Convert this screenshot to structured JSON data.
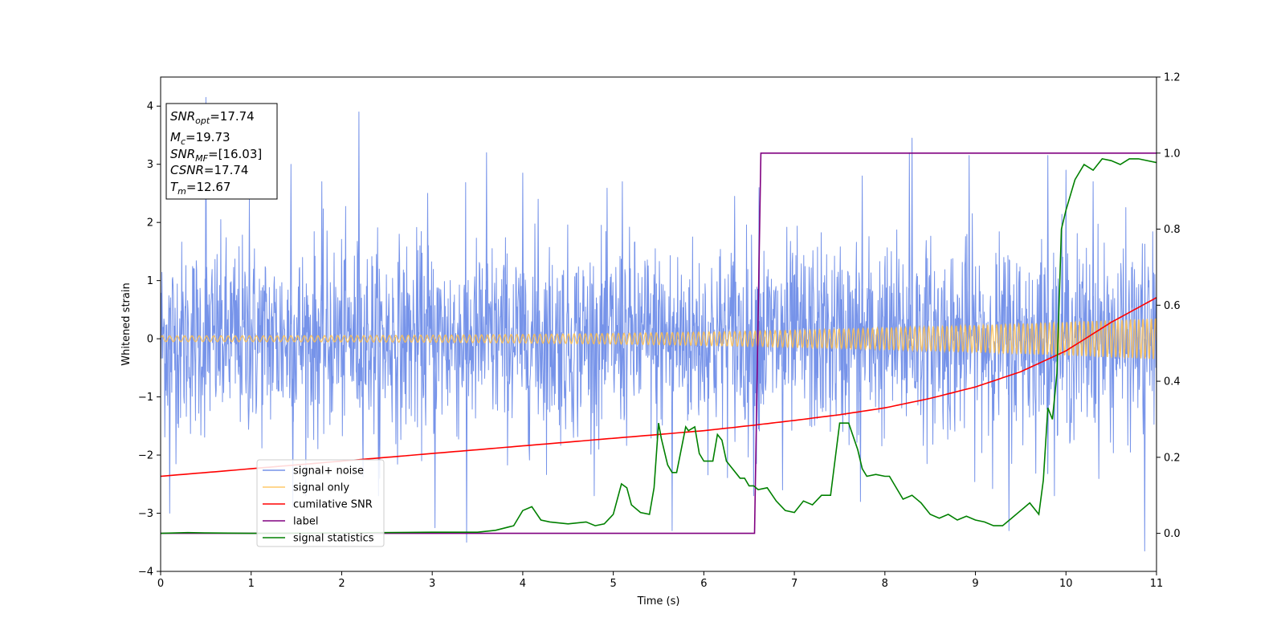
{
  "chart_data": {
    "type": "line",
    "xlabel": "Time (s)",
    "ylabel": "Whitened strain",
    "xlim": [
      0,
      11
    ],
    "ylim_left": [
      -4.0,
      4.5
    ],
    "ylim_right": [
      -0.1,
      1.2
    ],
    "x_ticks": [
      "0",
      "1",
      "2",
      "3",
      "4",
      "5",
      "6",
      "7",
      "8",
      "9",
      "10",
      "11"
    ],
    "y_left_ticks": [
      {
        "value": 4,
        "label": "4"
      },
      {
        "value": 3,
        "label": "3"
      },
      {
        "value": 2,
        "label": "2"
      },
      {
        "value": 1,
        "label": "1"
      },
      {
        "value": 0,
        "label": "0"
      },
      {
        "value": -1,
        "label": "−1"
      },
      {
        "value": -2,
        "label": "−2"
      },
      {
        "value": -3,
        "label": "−3"
      },
      {
        "value": -4,
        "label": "−4"
      }
    ],
    "y_right_ticks": [
      {
        "value": 1.2,
        "label": "1.2"
      },
      {
        "value": 1.0,
        "label": "1.0"
      },
      {
        "value": 0.8,
        "label": "0.8"
      },
      {
        "value": 0.6,
        "label": "0.6"
      },
      {
        "value": 0.4,
        "label": "0.4"
      },
      {
        "value": 0.2,
        "label": "0.2"
      },
      {
        "value": 0.0,
        "label": "0.0"
      }
    ],
    "grid": false,
    "legend_position": "lower-left",
    "colors": {
      "signal_noise": "#4169e1",
      "signal_only": "#ffc04d",
      "cumulative_snr": "#ff0000",
      "label": "#800080",
      "signal_statistics": "#008000"
    },
    "annotation": {
      "lines": [
        {
          "name": "SNR",
          "sub": "opt",
          "value": "=17.74"
        },
        {
          "name": "M",
          "sub": "c",
          "value": "=19.73"
        },
        {
          "name": "SNR",
          "sub": "MF",
          "value": "=[16.03]"
        },
        {
          "name": "CSNR",
          "sub": "",
          "value": "=17.74"
        },
        {
          "name": "T",
          "sub": "m",
          "value": "=12.67"
        }
      ]
    },
    "series": [
      {
        "name": "signal+ noise",
        "axis": "left",
        "style": "noise",
        "description_values": {
          "x_start": 0,
          "x_end": 11,
          "typical_min": -2.3,
          "typical_max": 2.3
        },
        "spikes": [
          [
            0.5,
            4.15
          ],
          [
            2.19,
            3.9
          ],
          [
            8.3,
            3.45
          ],
          [
            1.44,
            3.0
          ],
          [
            1.46,
            -2.9
          ],
          [
            3.6,
            3.2
          ],
          [
            4.0,
            2.85
          ],
          [
            4.17,
            2.4
          ],
          [
            6.61,
            2.6
          ],
          [
            6.55,
            -2.7
          ],
          [
            8.27,
            3.2
          ],
          [
            8.93,
            3.15
          ],
          [
            9.8,
            3.15
          ],
          [
            10.0,
            2.9
          ],
          [
            3.38,
            -3.5
          ],
          [
            0.1,
            -3.0
          ],
          [
            2.42,
            -2.4
          ],
          [
            3.03,
            -3.25
          ],
          [
            5.65,
            -3.3
          ],
          [
            6.87,
            -2.6
          ],
          [
            7.73,
            -2.8
          ],
          [
            9.37,
            -3.3
          ],
          [
            10.87,
            -3.65
          ],
          [
            10.3,
            2.7
          ],
          [
            7.75,
            2.8
          ],
          [
            1.78,
            2.7
          ],
          [
            0.98,
            2.4
          ],
          [
            5.1,
            2.7
          ],
          [
            2.95,
            2.5
          ],
          [
            6.34,
            2.45
          ]
        ]
      },
      {
        "name": "signal only",
        "axis": "left",
        "style": "chirp",
        "amplitude_start": 0.05,
        "amplitude_end": 0.35,
        "x_start": 0,
        "x_end": 11
      },
      {
        "name": "cumilative SNR",
        "axis": "right",
        "x": [
          0,
          1,
          2,
          3,
          4,
          5,
          6,
          6.5,
          7,
          7.5,
          8,
          8.5,
          9,
          9.5,
          10,
          10.5,
          11
        ],
        "values": [
          0.15,
          0.17,
          0.19,
          0.21,
          0.23,
          0.25,
          0.27,
          0.283,
          0.297,
          0.312,
          0.33,
          0.355,
          0.385,
          0.425,
          0.48,
          0.555,
          0.62
        ]
      },
      {
        "name": "label",
        "axis": "right",
        "x": [
          0,
          6.56,
          6.63,
          11
        ],
        "values": [
          0.0,
          0.0,
          1.0,
          1.0
        ]
      },
      {
        "name": "signal statistics",
        "axis": "right",
        "x": [
          0,
          0.3,
          0.5,
          1,
          2,
          3,
          3.5,
          3.7,
          3.9,
          4.0,
          4.1,
          4.2,
          4.3,
          4.5,
          4.7,
          4.8,
          4.9,
          5.0,
          5.09,
          5.15,
          5.2,
          5.3,
          5.4,
          5.45,
          5.5,
          5.53,
          5.6,
          5.65,
          5.7,
          5.8,
          5.83,
          5.9,
          5.95,
          6.0,
          6.1,
          6.15,
          6.2,
          6.25,
          6.3,
          6.4,
          6.45,
          6.5,
          6.55,
          6.6,
          6.7,
          6.8,
          6.9,
          7.0,
          7.1,
          7.2,
          7.3,
          7.4,
          7.5,
          7.6,
          7.7,
          7.75,
          7.8,
          7.9,
          8.0,
          8.05,
          8.1,
          8.2,
          8.3,
          8.4,
          8.5,
          8.6,
          8.7,
          8.8,
          8.9,
          9.0,
          9.1,
          9.2,
          9.3,
          9.4,
          9.5,
          9.6,
          9.7,
          9.75,
          9.8,
          9.85,
          9.9,
          9.95,
          10.0,
          10.1,
          10.2,
          10.3,
          10.4,
          10.5,
          10.6,
          10.7,
          10.8,
          11.0
        ],
        "values": [
          0.0,
          0.002,
          0.001,
          0.0,
          0.001,
          0.003,
          0.003,
          0.008,
          0.02,
          0.06,
          0.07,
          0.035,
          0.03,
          0.025,
          0.03,
          0.02,
          0.025,
          0.05,
          0.13,
          0.12,
          0.075,
          0.055,
          0.05,
          0.12,
          0.29,
          0.25,
          0.18,
          0.16,
          0.16,
          0.28,
          0.27,
          0.28,
          0.21,
          0.19,
          0.19,
          0.26,
          0.245,
          0.19,
          0.175,
          0.145,
          0.145,
          0.125,
          0.125,
          0.115,
          0.12,
          0.085,
          0.06,
          0.055,
          0.085,
          0.075,
          0.1,
          0.1,
          0.29,
          0.29,
          0.22,
          0.17,
          0.15,
          0.155,
          0.15,
          0.15,
          0.13,
          0.09,
          0.1,
          0.08,
          0.05,
          0.04,
          0.05,
          0.035,
          0.045,
          0.035,
          0.03,
          0.02,
          0.02,
          0.04,
          0.06,
          0.08,
          0.05,
          0.14,
          0.33,
          0.3,
          0.42,
          0.8,
          0.85,
          0.93,
          0.97,
          0.955,
          0.985,
          0.98,
          0.97,
          0.985,
          0.985,
          0.975
        ]
      }
    ]
  }
}
